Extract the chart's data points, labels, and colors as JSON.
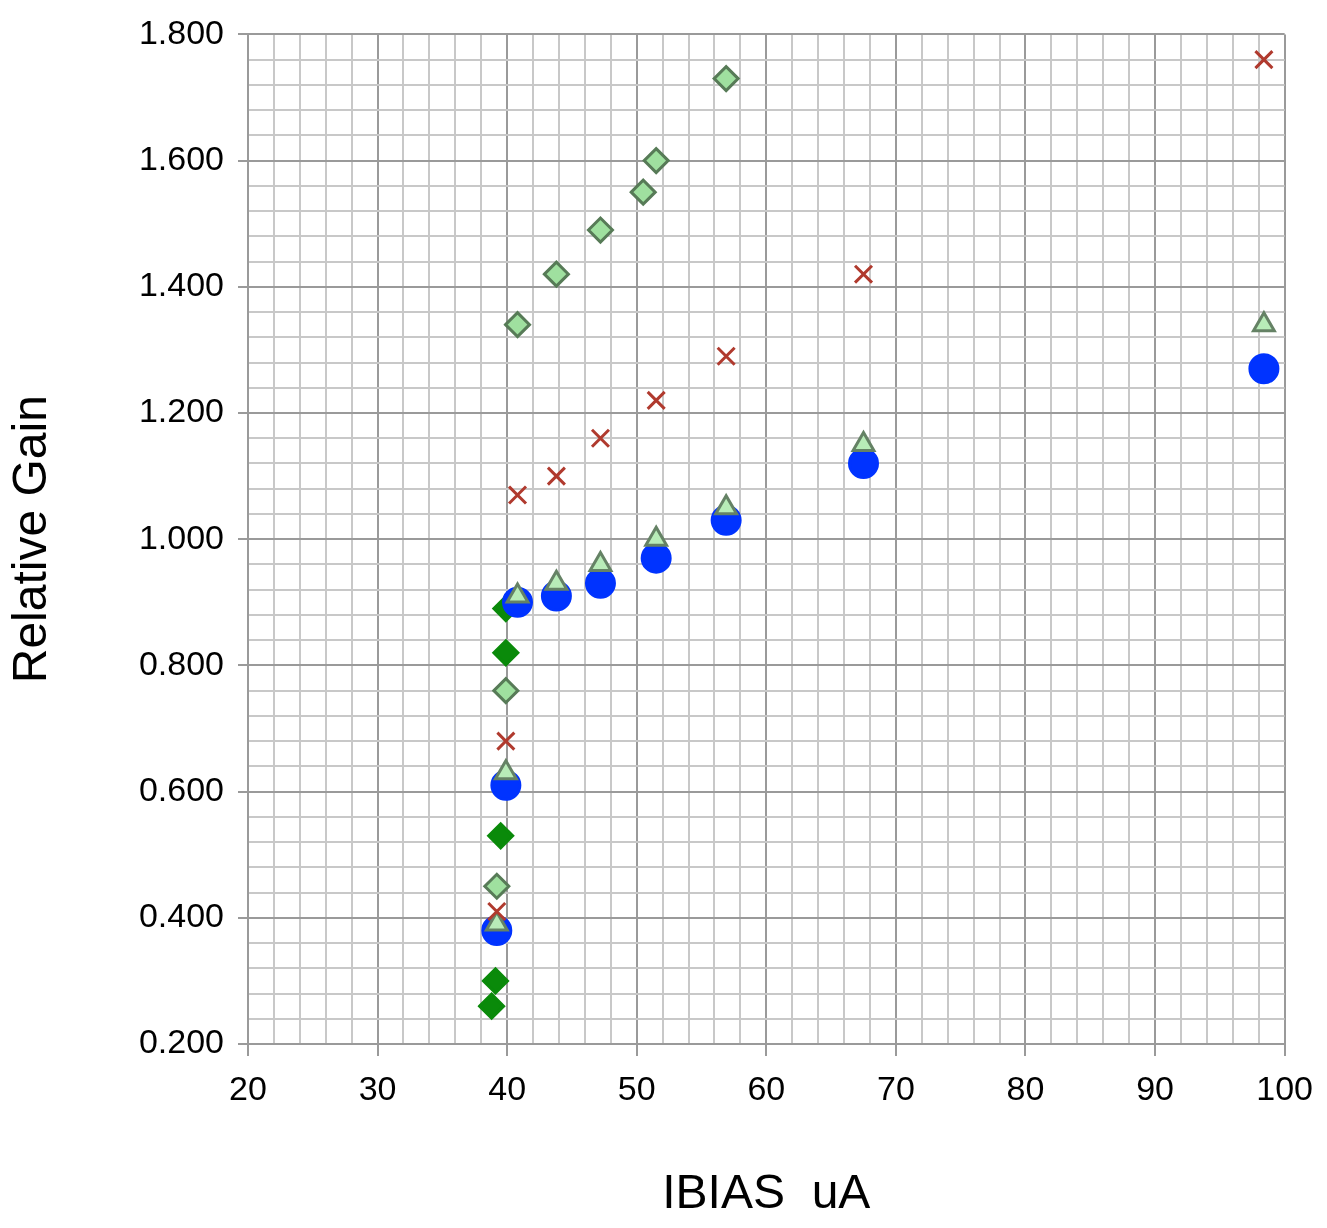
{
  "chart_data": {
    "type": "scatter",
    "xlabel": "IBIAS  uA",
    "ylabel": "Relative Gain",
    "xlim": [
      20,
      100
    ],
    "ylim": [
      0.2,
      1.8
    ],
    "xticks": [
      20,
      {
        "value": 22,
        "label": null
      },
      {
        "value": 24,
        "label": null
      },
      {
        "value": 26,
        "label": null
      },
      {
        "value": 28,
        "label": null
      },
      30,
      {
        "value": 32,
        "label": null
      },
      {
        "value": 34,
        "label": null
      },
      {
        "value": 36,
        "label": null
      },
      {
        "value": 38,
        "label": null
      },
      40,
      {
        "value": 42,
        "label": null
      },
      {
        "value": 44,
        "label": null
      },
      {
        "value": 46,
        "label": null
      },
      {
        "value": 48,
        "label": null
      },
      50,
      {
        "value": 52,
        "label": null
      },
      {
        "value": 54,
        "label": null
      },
      {
        "value": 56,
        "label": null
      },
      {
        "value": 58,
        "label": null
      },
      60,
      {
        "value": 62,
        "label": null
      },
      {
        "value": 64,
        "label": null
      },
      {
        "value": 66,
        "label": null
      },
      {
        "value": 68,
        "label": null
      },
      70,
      {
        "value": 72,
        "label": null
      },
      {
        "value": 74,
        "label": null
      },
      {
        "value": 76,
        "label": null
      },
      {
        "value": 78,
        "label": null
      },
      80,
      {
        "value": 82,
        "label": null
      },
      {
        "value": 84,
        "label": null
      },
      {
        "value": 86,
        "label": null
      },
      {
        "value": 88,
        "label": null
      },
      90,
      {
        "value": 92,
        "label": null
      },
      {
        "value": 94,
        "label": null
      },
      {
        "value": 96,
        "label": null
      },
      {
        "value": 98,
        "label": null
      },
      100
    ],
    "yticks": [
      {
        "value": 0.2,
        "label": "0.200"
      },
      {
        "value": 0.24,
        "label": null
      },
      {
        "value": 0.28,
        "label": null
      },
      {
        "value": 0.32,
        "label": null
      },
      {
        "value": 0.36,
        "label": null
      },
      {
        "value": 0.4,
        "label": "0.400"
      },
      {
        "value": 0.44,
        "label": null
      },
      {
        "value": 0.48,
        "label": null
      },
      {
        "value": 0.52,
        "label": null
      },
      {
        "value": 0.56,
        "label": null
      },
      {
        "value": 0.6,
        "label": "0.600"
      },
      {
        "value": 0.64,
        "label": null
      },
      {
        "value": 0.68,
        "label": null
      },
      {
        "value": 0.72,
        "label": null
      },
      {
        "value": 0.76,
        "label": null
      },
      {
        "value": 0.8,
        "label": "0.800"
      },
      {
        "value": 0.84,
        "label": null
      },
      {
        "value": 0.88,
        "label": null
      },
      {
        "value": 0.92,
        "label": null
      },
      {
        "value": 0.96,
        "label": null
      },
      {
        "value": 1.0,
        "label": "1.000"
      },
      {
        "value": 1.04,
        "label": null
      },
      {
        "value": 1.08,
        "label": null
      },
      {
        "value": 1.12,
        "label": null
      },
      {
        "value": 1.16,
        "label": null
      },
      {
        "value": 1.2,
        "label": "1.200"
      },
      {
        "value": 1.24,
        "label": null
      },
      {
        "value": 1.28,
        "label": null
      },
      {
        "value": 1.32,
        "label": null
      },
      {
        "value": 1.36,
        "label": null
      },
      {
        "value": 1.4,
        "label": "1.400"
      },
      {
        "value": 1.44,
        "label": null
      },
      {
        "value": 1.48,
        "label": null
      },
      {
        "value": 1.52,
        "label": null
      },
      {
        "value": 1.56,
        "label": null
      },
      {
        "value": 1.6,
        "label": "1.600"
      },
      {
        "value": 1.64,
        "label": null
      },
      {
        "value": 1.68,
        "label": null
      },
      {
        "value": 1.72,
        "label": null
      },
      {
        "value": 1.76,
        "label": null
      },
      {
        "value": 1.8,
        "label": "1.800"
      }
    ],
    "grid": true,
    "legend": false,
    "series": [
      {
        "color": "#0a8a0a",
        "marker": "diamond",
        "x": [
          38.8,
          39.1,
          39.5,
          39.9,
          39.9
        ],
        "values": [
          0.26,
          0.3,
          0.53,
          0.82,
          0.89
        ]
      },
      {
        "color": "#0033ff",
        "marker": "circle",
        "x": [
          39.2,
          39.9,
          40.8,
          43.8,
          47.2,
          51.5,
          56.9,
          67.5,
          98.4
        ],
        "values": [
          0.38,
          0.61,
          0.9,
          0.91,
          0.93,
          0.97,
          1.03,
          1.12,
          1.27
        ]
      },
      {
        "color": "#b8ecb8",
        "marker": "triangle",
        "x": [
          39.2,
          39.9,
          40.8,
          43.8,
          47.2,
          51.5,
          56.9,
          67.5,
          98.4
        ],
        "values": [
          0.39,
          0.63,
          0.91,
          0.93,
          0.96,
          1.0,
          1.05,
          1.15,
          1.34
        ]
      },
      {
        "color": "#b03a2e",
        "marker": "cross",
        "x": [
          39.2,
          39.9,
          40.8,
          43.8,
          47.2,
          51.5,
          56.9,
          67.5,
          98.4
        ],
        "values": [
          0.41,
          0.68,
          1.07,
          1.1,
          1.16,
          1.22,
          1.29,
          1.42,
          1.76
        ]
      },
      {
        "color": "#9fe09f",
        "marker": "diamond",
        "x": [
          39.2,
          39.9,
          40.8,
          43.8,
          47.2,
          50.5,
          51.5,
          56.9
        ],
        "values": [
          0.45,
          0.76,
          1.34,
          1.42,
          1.49,
          1.55,
          1.6,
          1.73
        ]
      }
    ]
  }
}
